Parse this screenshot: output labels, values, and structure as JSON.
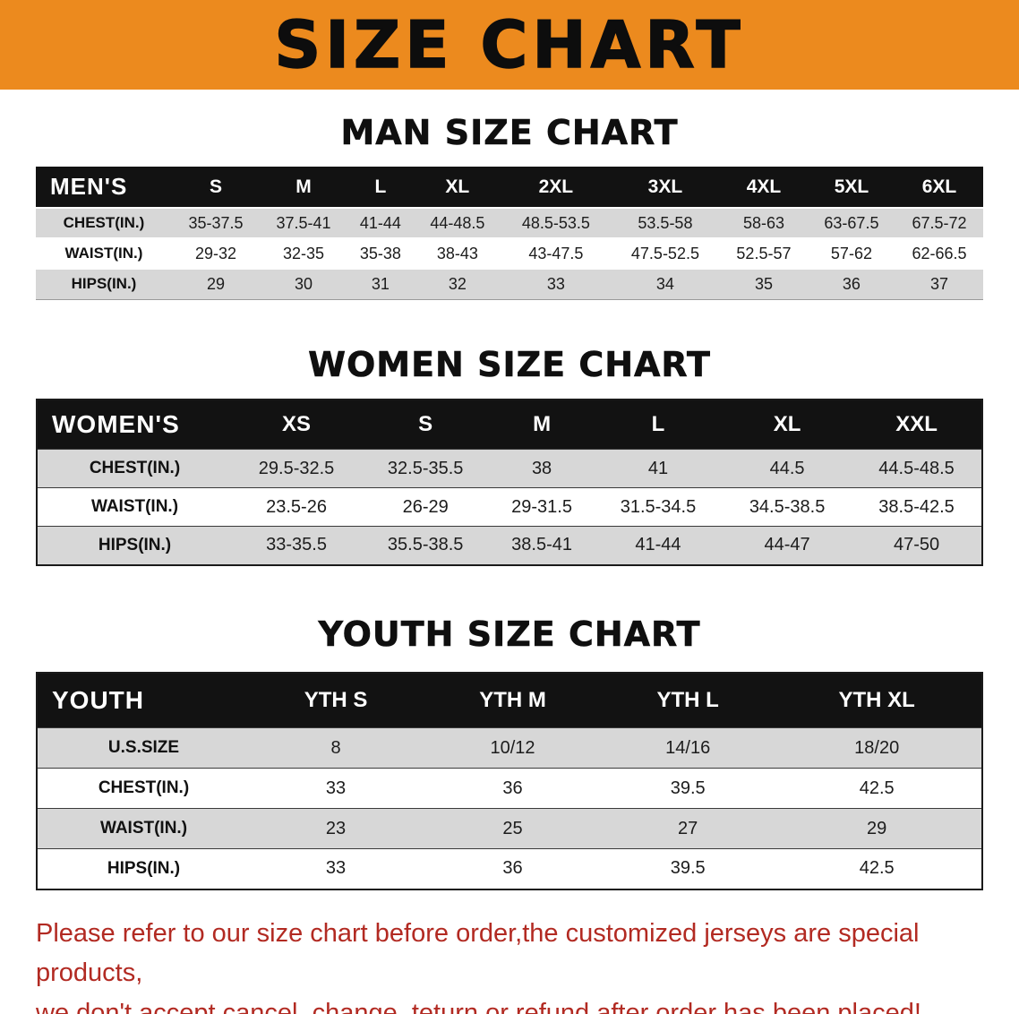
{
  "banner": {
    "title": "SIZE CHART",
    "bg_color": "#EC8A1E"
  },
  "men": {
    "heading": "MAN SIZE CHART",
    "table": {
      "header": [
        "MEN'S",
        "S",
        "M",
        "L",
        "XL",
        "2XL",
        "3XL",
        "4XL",
        "5XL",
        "6XL"
      ],
      "rows": [
        [
          "CHEST(IN.)",
          "35-37.5",
          "37.5-41",
          "41-44",
          "44-48.5",
          "48.5-53.5",
          "53.5-58",
          "58-63",
          "63-67.5",
          "67.5-72"
        ],
        [
          "WAIST(IN.)",
          "29-32",
          "32-35",
          "35-38",
          "38-43",
          "43-47.5",
          "47.5-52.5",
          "52.5-57",
          "57-62",
          "62-66.5"
        ],
        [
          "HIPS(IN.)",
          "29",
          "30",
          "31",
          "32",
          "33",
          "34",
          "35",
          "36",
          "37"
        ]
      ]
    }
  },
  "women": {
    "heading": "WOMEN SIZE CHART",
    "table": {
      "header": [
        "WOMEN'S",
        "XS",
        "S",
        "M",
        "L",
        "XL",
        "XXL"
      ],
      "rows": [
        [
          "CHEST(IN.)",
          "29.5-32.5",
          "32.5-35.5",
          "38",
          "41",
          "44.5",
          "44.5-48.5"
        ],
        [
          "WAIST(IN.)",
          "23.5-26",
          "26-29",
          "29-31.5",
          "31.5-34.5",
          "34.5-38.5",
          "38.5-42.5"
        ],
        [
          "HIPS(IN.)",
          "33-35.5",
          "35.5-38.5",
          "38.5-41",
          "41-44",
          "44-47",
          "47-50"
        ]
      ]
    }
  },
  "youth": {
    "heading": "YOUTH SIZE CHART",
    "table": {
      "header": [
        "YOUTH",
        "YTH S",
        "YTH M",
        "YTH L",
        "YTH XL"
      ],
      "rows": [
        [
          "U.S.SIZE",
          "8",
          "10/12",
          "14/16",
          "18/20"
        ],
        [
          "CHEST(IN.)",
          "33",
          "36",
          "39.5",
          "42.5"
        ],
        [
          "WAIST(IN.)",
          "23",
          "25",
          "27",
          "29"
        ],
        [
          "HIPS(IN.)",
          "33",
          "36",
          "39.5",
          "42.5"
        ]
      ]
    }
  },
  "disclaimer": {
    "line1": "Please refer to our size chart before order,the customized jerseys are special products,",
    "line2": "we don't accept cancel, change, teturn or refund after order has been placed!",
    "color": "#B22A22"
  }
}
